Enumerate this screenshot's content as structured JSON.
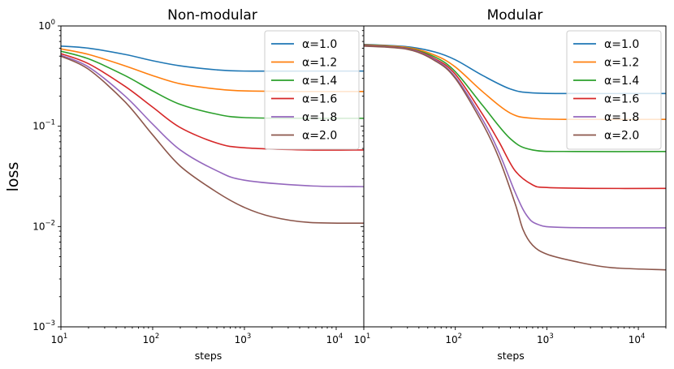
{
  "chart_data": {
    "type": "line",
    "ylabel": "loss",
    "xscale": "log",
    "yscale": "log",
    "shared_y": true,
    "ylim": [
      0.001,
      1.0
    ],
    "ytick_labels": [
      {
        "base": "10",
        "exp": "0",
        "value": 1.0
      },
      {
        "base": "10",
        "exp": "−1",
        "value": 0.1
      },
      {
        "base": "10",
        "exp": "−2",
        "value": 0.01
      },
      {
        "base": "10",
        "exp": "−3",
        "value": 0.001
      }
    ],
    "series_style": [
      {
        "name": "α=1.0",
        "color": "#1f77b4"
      },
      {
        "name": "α=1.2",
        "color": "#ff7f0e"
      },
      {
        "name": "α=1.4",
        "color": "#2ca02c"
      },
      {
        "name": "α=1.6",
        "color": "#d62728"
      },
      {
        "name": "α=1.8",
        "color": "#9467bd"
      },
      {
        "name": "α=2.0",
        "color": "#8c564b"
      }
    ],
    "panels": [
      {
        "title": "Non-modular",
        "xlabel": "steps",
        "xlim": [
          10,
          20000
        ],
        "xtick_labels": [
          {
            "base": "10",
            "exp": "1",
            "value": 10
          },
          {
            "base": "10",
            "exp": "2",
            "value": 100
          },
          {
            "base": "10",
            "exp": "3",
            "value": 1000
          },
          {
            "base": "10",
            "exp": "4",
            "value": 10000
          }
        ],
        "legend_loc": "upper right",
        "series": [
          {
            "name": "α=1.0",
            "points": [
              [
                10,
                0.63
              ],
              [
                20,
                0.6
              ],
              [
                50,
                0.52
              ],
              [
                100,
                0.45
              ],
              [
                200,
                0.4
              ],
              [
                500,
                0.365
              ],
              [
                1000,
                0.355
              ],
              [
                5000,
                0.355
              ],
              [
                20000,
                0.355
              ]
            ]
          },
          {
            "name": "α=1.2",
            "points": [
              [
                10,
                0.59
              ],
              [
                20,
                0.52
              ],
              [
                50,
                0.4
              ],
              [
                100,
                0.32
              ],
              [
                200,
                0.265
              ],
              [
                500,
                0.235
              ],
              [
                1000,
                0.225
              ],
              [
                5000,
                0.222
              ],
              [
                20000,
                0.222
              ]
            ]
          },
          {
            "name": "α=1.4",
            "points": [
              [
                10,
                0.56
              ],
              [
                20,
                0.47
              ],
              [
                50,
                0.32
              ],
              [
                100,
                0.225
              ],
              [
                200,
                0.165
              ],
              [
                500,
                0.132
              ],
              [
                1000,
                0.122
              ],
              [
                5000,
                0.12
              ],
              [
                20000,
                0.12
              ]
            ]
          },
          {
            "name": "α=1.6",
            "points": [
              [
                10,
                0.53
              ],
              [
                20,
                0.42
              ],
              [
                50,
                0.25
              ],
              [
                100,
                0.155
              ],
              [
                200,
                0.097
              ],
              [
                500,
                0.068
              ],
              [
                1000,
                0.061
              ],
              [
                5000,
                0.058
              ],
              [
                20000,
                0.058
              ]
            ]
          },
          {
            "name": "α=1.8",
            "points": [
              [
                10,
                0.51
              ],
              [
                20,
                0.39
              ],
              [
                50,
                0.2
              ],
              [
                100,
                0.105
              ],
              [
                200,
                0.058
              ],
              [
                500,
                0.036
              ],
              [
                1000,
                0.029
              ],
              [
                5000,
                0.0255
              ],
              [
                20000,
                0.025
              ]
            ]
          },
          {
            "name": "α=2.0",
            "points": [
              [
                10,
                0.5
              ],
              [
                20,
                0.37
              ],
              [
                50,
                0.175
              ],
              [
                100,
                0.082
              ],
              [
                200,
                0.04
              ],
              [
                500,
                0.022
              ],
              [
                1000,
                0.0155
              ],
              [
                2000,
                0.0125
              ],
              [
                5000,
                0.011
              ],
              [
                20000,
                0.0108
              ]
            ]
          }
        ]
      },
      {
        "title": "Modular",
        "xlabel": "steps",
        "xlim": [
          10,
          20000
        ],
        "xtick_labels": [
          {
            "base": "10",
            "exp": "1",
            "value": 10
          },
          {
            "base": "10",
            "exp": "2",
            "value": 100
          },
          {
            "base": "10",
            "exp": "3",
            "value": 1000
          },
          {
            "base": "10",
            "exp": "4",
            "value": 10000
          }
        ],
        "legend_loc": "upper right",
        "series": [
          {
            "name": "α=1.0",
            "points": [
              [
                10,
                0.655
              ],
              [
                30,
                0.62
              ],
              [
                60,
                0.55
              ],
              [
                100,
                0.46
              ],
              [
                200,
                0.32
              ],
              [
                400,
                0.235
              ],
              [
                700,
                0.215
              ],
              [
                2000,
                0.212
              ],
              [
                20000,
                0.212
              ]
            ]
          },
          {
            "name": "α=1.2",
            "points": [
              [
                10,
                0.65
              ],
              [
                30,
                0.61
              ],
              [
                60,
                0.51
              ],
              [
                100,
                0.39
              ],
              [
                200,
                0.22
              ],
              [
                400,
                0.135
              ],
              [
                700,
                0.12
              ],
              [
                2000,
                0.117
              ],
              [
                20000,
                0.117
              ]
            ]
          },
          {
            "name": "α=1.4",
            "points": [
              [
                10,
                0.645
              ],
              [
                30,
                0.6
              ],
              [
                60,
                0.49
              ],
              [
                100,
                0.35
              ],
              [
                200,
                0.16
              ],
              [
                400,
                0.075
              ],
              [
                700,
                0.058
              ],
              [
                2000,
                0.056
              ],
              [
                20000,
                0.056
              ]
            ]
          },
          {
            "name": "α=1.6",
            "points": [
              [
                10,
                0.64
              ],
              [
                30,
                0.595
              ],
              [
                60,
                0.47
              ],
              [
                100,
                0.33
              ],
              [
                200,
                0.13
              ],
              [
                300,
                0.07
              ],
              [
                450,
                0.036
              ],
              [
                700,
                0.026
              ],
              [
                1000,
                0.0245
              ],
              [
                3000,
                0.024
              ],
              [
                20000,
                0.024
              ]
            ]
          },
          {
            "name": "α=1.8",
            "points": [
              [
                10,
                0.635
              ],
              [
                30,
                0.59
              ],
              [
                60,
                0.46
              ],
              [
                100,
                0.31
              ],
              [
                200,
                0.115
              ],
              [
                300,
                0.055
              ],
              [
                450,
                0.022
              ],
              [
                600,
                0.013
              ],
              [
                800,
                0.0105
              ],
              [
                1500,
                0.0098
              ],
              [
                20000,
                0.0097
              ]
            ]
          },
          {
            "name": "α=2.0",
            "points": [
              [
                10,
                0.63
              ],
              [
                30,
                0.585
              ],
              [
                60,
                0.45
              ],
              [
                100,
                0.3
              ],
              [
                200,
                0.105
              ],
              [
                300,
                0.048
              ],
              [
                450,
                0.017
              ],
              [
                550,
                0.0093
              ],
              [
                700,
                0.0065
              ],
              [
                1000,
                0.0053
              ],
              [
                2000,
                0.0045
              ],
              [
                5000,
                0.0039
              ],
              [
                20000,
                0.0037
              ]
            ]
          }
        ]
      }
    ]
  }
}
